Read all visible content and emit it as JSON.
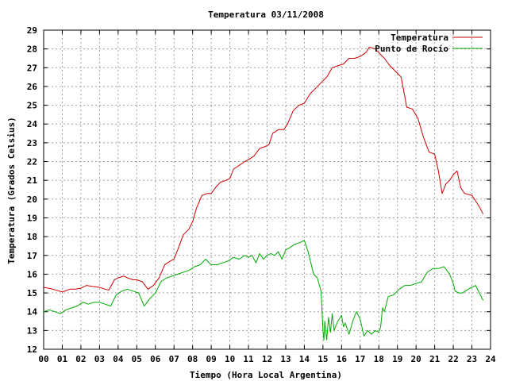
{
  "chart_data": {
    "type": "line",
    "title": "Temperatura 03/11/2008",
    "xlabel": "Tiempo (Hora Local Argentina)",
    "ylabel": "Temperatura (Grados Celsius)",
    "xlim": [
      0,
      24
    ],
    "ylim": [
      12,
      29
    ],
    "x_ticks": [
      "00",
      "01",
      "02",
      "03",
      "04",
      "05",
      "06",
      "07",
      "08",
      "09",
      "10",
      "11",
      "12",
      "13",
      "14",
      "15",
      "16",
      "17",
      "18",
      "19",
      "20",
      "21",
      "22",
      "23",
      "24"
    ],
    "y_ticks": [
      "12",
      "13",
      "14",
      "15",
      "16",
      "17",
      "18",
      "19",
      "20",
      "21",
      "22",
      "23",
      "24",
      "25",
      "26",
      "27",
      "28",
      "29"
    ],
    "grid": true,
    "legend_position": "top-right",
    "series": [
      {
        "name": "Temperatura",
        "color": "#cc0000",
        "x": [
          0,
          0.5,
          1,
          1.4,
          1.7,
          2,
          2.3,
          2.6,
          3,
          3.3,
          3.5,
          3.8,
          4,
          4.3,
          4.5,
          4.8,
          5,
          5.3,
          5.6,
          5.9,
          6.2,
          6.5,
          6.8,
          7,
          7.2,
          7.5,
          7.8,
          8,
          8.2,
          8.5,
          8.8,
          9,
          9.3,
          9.5,
          9.8,
          10,
          10.2,
          10.5,
          10.8,
          11,
          11.3,
          11.6,
          11.9,
          12.1,
          12.3,
          12.6,
          12.9,
          13.1,
          13.4,
          13.7,
          14,
          14.3,
          14.6,
          14.9,
          15.2,
          15.5,
          15.8,
          16.1,
          16.4,
          16.7,
          17,
          17.3,
          17.5,
          17.8,
          18,
          18.3,
          18.6,
          18.9,
          19.2,
          19.5,
          19.8,
          20.1,
          20.4,
          20.7,
          21,
          21.2,
          21.4,
          21.6,
          21.8,
          22,
          22.2,
          22.4,
          22.6,
          23,
          23.2,
          23.4,
          23.6
        ],
        "y": [
          15.3,
          15.2,
          15.05,
          15.2,
          15.2,
          15.25,
          15.4,
          15.35,
          15.3,
          15.2,
          15.15,
          15.7,
          15.8,
          15.9,
          15.8,
          15.7,
          15.7,
          15.6,
          15.2,
          15.4,
          15.8,
          16.5,
          16.7,
          16.8,
          17.3,
          18.1,
          18.4,
          18.8,
          19.5,
          20.2,
          20.3,
          20.3,
          20.7,
          20.9,
          21.0,
          21.1,
          21.6,
          21.8,
          22.0,
          22.1,
          22.3,
          22.7,
          22.8,
          22.9,
          23.5,
          23.7,
          23.7,
          24.0,
          24.7,
          25.0,
          25.1,
          25.6,
          25.9,
          26.2,
          26.5,
          27.0,
          27.1,
          27.2,
          27.5,
          27.5,
          27.6,
          27.8,
          28.1,
          28.0,
          27.8,
          27.5,
          27.1,
          26.8,
          26.5,
          24.9,
          24.8,
          24.3,
          23.3,
          22.5,
          22.4,
          21.5,
          20.3,
          20.8,
          21.0,
          21.3,
          21.5,
          20.6,
          20.3,
          20.2,
          19.9,
          19.6,
          19.2
        ]
      },
      {
        "name": "Punto de Rocío",
        "color": "#00aa00",
        "x": [
          0,
          0.3,
          0.6,
          0.9,
          1.2,
          1.5,
          1.8,
          2.1,
          2.4,
          2.7,
          3,
          3.3,
          3.6,
          3.9,
          4.2,
          4.5,
          4.8,
          5.1,
          5.4,
          5.7,
          6,
          6.3,
          6.6,
          6.9,
          7.2,
          7.5,
          7.8,
          8.1,
          8.4,
          8.7,
          9,
          9.3,
          9.6,
          9.9,
          10.2,
          10.5,
          10.8,
          11,
          11.2,
          11.4,
          11.6,
          11.8,
          12,
          12.2,
          12.4,
          12.6,
          12.8,
          13,
          13.2,
          13.5,
          13.8,
          14,
          14.2,
          14.5,
          14.7,
          14.9,
          15,
          15.05,
          15.1,
          15.2,
          15.3,
          15.4,
          15.5,
          15.6,
          15.8,
          16,
          16.1,
          16.2,
          16.4,
          16.6,
          16.8,
          17,
          17.2,
          17.4,
          17.6,
          17.8,
          18,
          18.1,
          18.2,
          18.3,
          18.5,
          18.8,
          19.1,
          19.4,
          19.7,
          20,
          20.3,
          20.6,
          20.9,
          21.2,
          21.5,
          21.8,
          22,
          22.1,
          22.3,
          22.5,
          22.8,
          23,
          23.2,
          23.4,
          23.6
        ],
        "y": [
          14.0,
          14.1,
          14.0,
          13.9,
          14.1,
          14.2,
          14.3,
          14.5,
          14.4,
          14.5,
          14.5,
          14.4,
          14.3,
          14.9,
          15.1,
          15.2,
          15.1,
          15.0,
          14.3,
          14.7,
          15.0,
          15.6,
          15.8,
          15.9,
          16.0,
          16.1,
          16.2,
          16.4,
          16.5,
          16.8,
          16.5,
          16.5,
          16.6,
          16.7,
          16.9,
          16.8,
          17.0,
          16.9,
          17.0,
          16.6,
          17.1,
          16.8,
          17.0,
          17.1,
          17.0,
          17.2,
          16.8,
          17.3,
          17.4,
          17.6,
          17.7,
          17.8,
          17.2,
          16.0,
          15.8,
          15.1,
          13.0,
          12.5,
          13.5,
          12.5,
          13.7,
          12.9,
          13.9,
          13.0,
          13.5,
          13.8,
          13.2,
          13.4,
          12.8,
          13.5,
          14.0,
          13.6,
          12.7,
          13.0,
          12.8,
          13.0,
          12.9,
          13.2,
          14.2,
          14.0,
          14.8,
          14.9,
          15.2,
          15.4,
          15.4,
          15.5,
          15.6,
          16.1,
          16.3,
          16.3,
          16.4,
          16.0,
          15.5,
          15.1,
          15.0,
          15.0,
          15.2,
          15.3,
          15.4,
          15.0,
          14.6
        ]
      }
    ]
  }
}
